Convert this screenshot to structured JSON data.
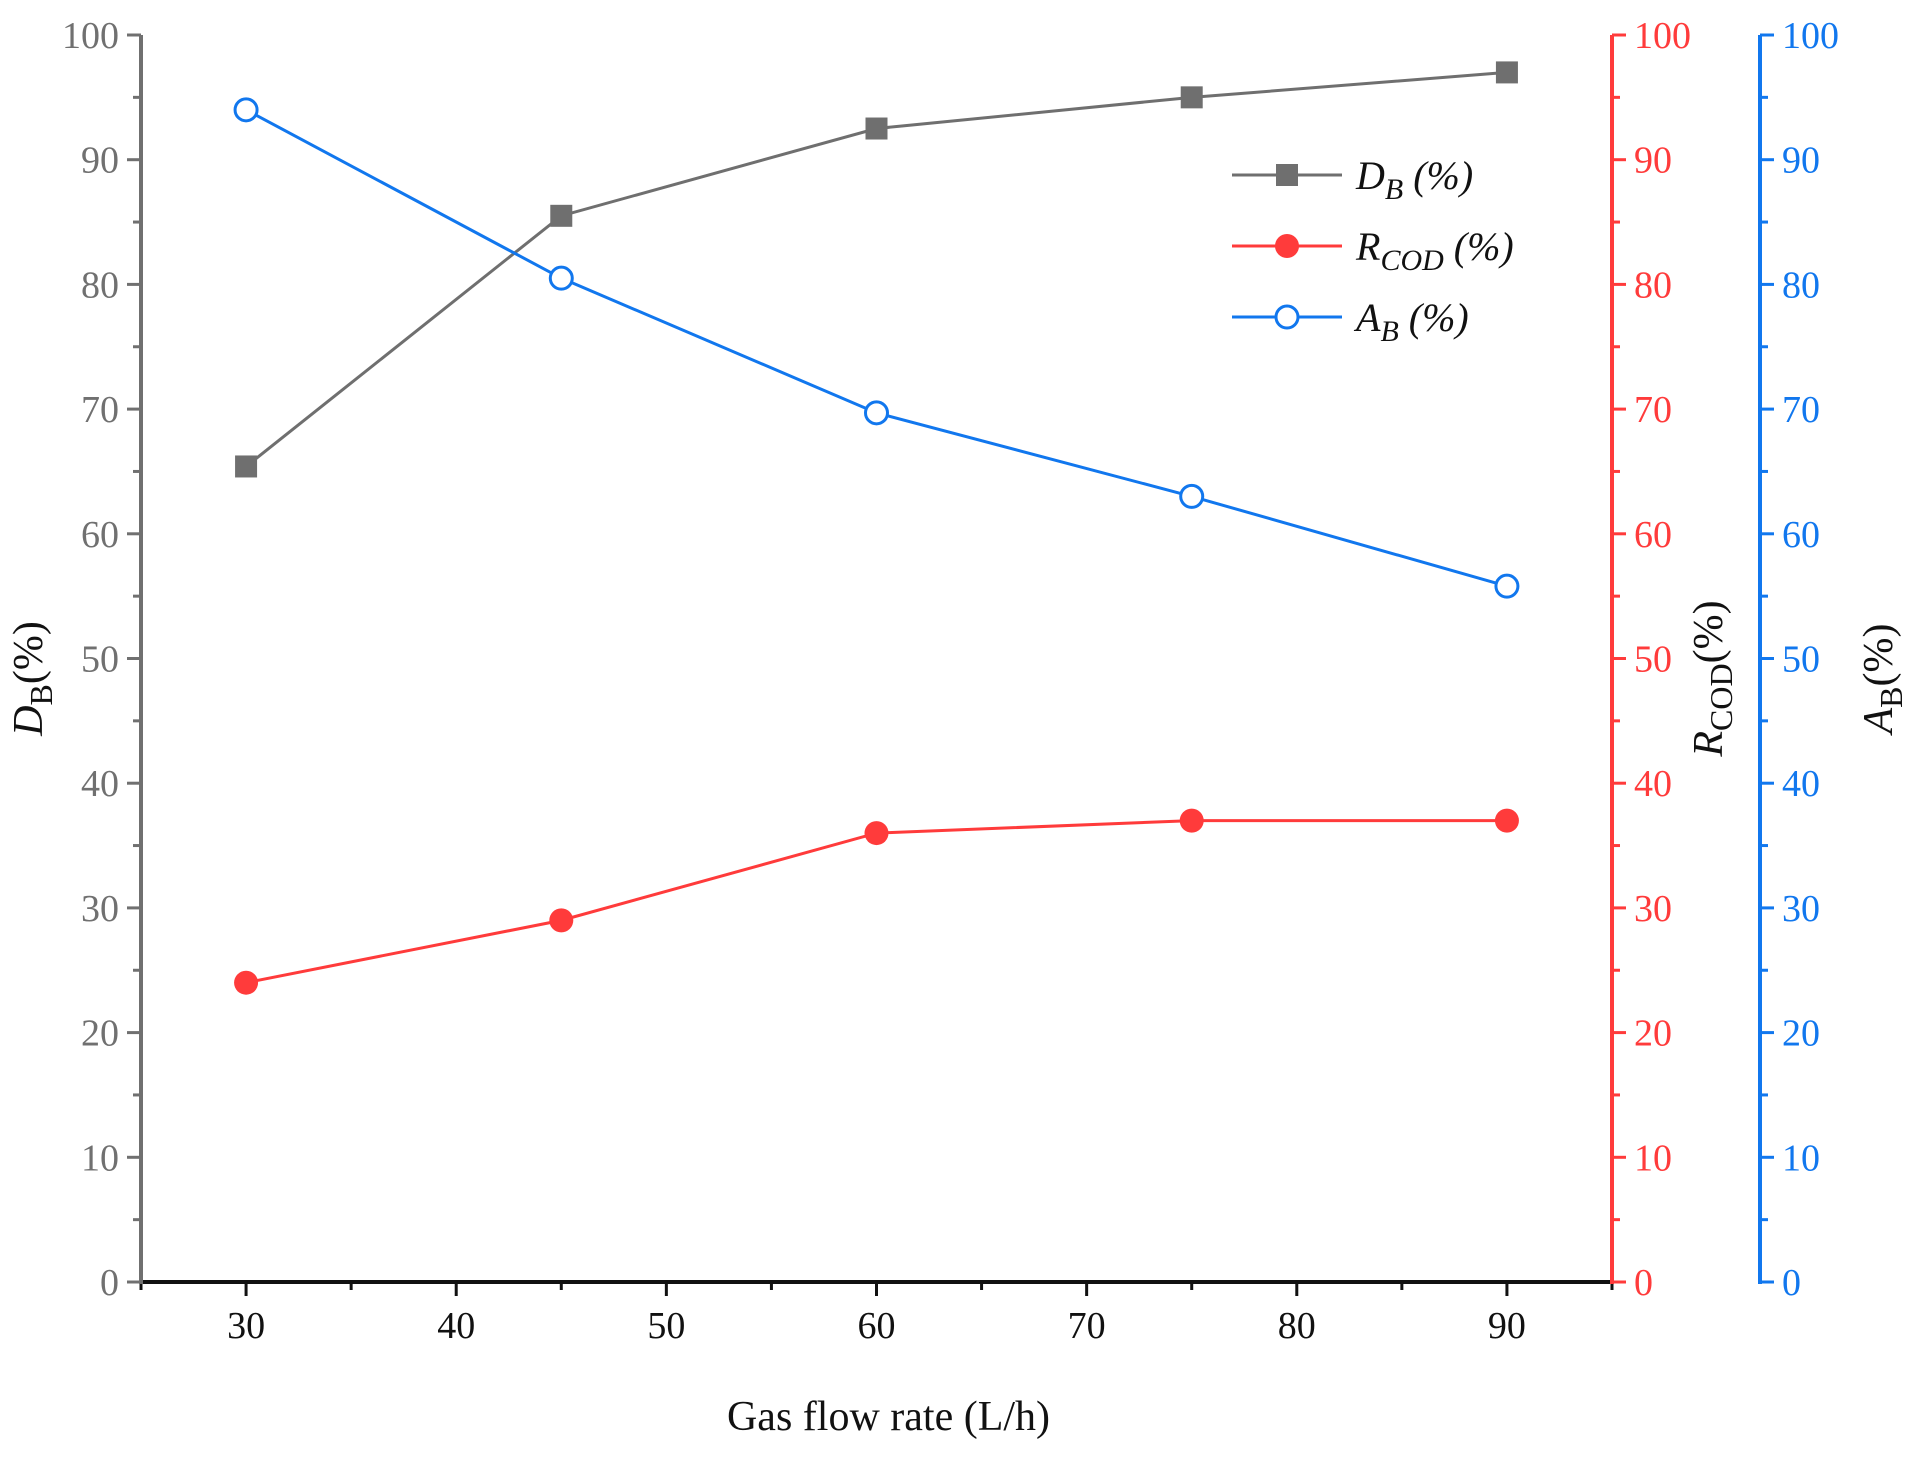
{
  "chart_data": {
    "type": "line",
    "title": "",
    "xlabel": "Gas flow rate (L/h)",
    "xlim": [
      25,
      95
    ],
    "xticks": [
      30,
      40,
      50,
      60,
      70,
      80,
      90
    ],
    "x": [
      30,
      45,
      60,
      75,
      90
    ],
    "y_axes": [
      {
        "id": "DB",
        "position": "left",
        "label_main": "D",
        "label_sub": "B",
        "label_tail": "(%)",
        "color": "#707070",
        "ylim": [
          0,
          100
        ],
        "yticks": [
          0,
          10,
          20,
          30,
          40,
          50,
          60,
          70,
          80,
          90,
          100
        ]
      },
      {
        "id": "RCOD",
        "position": "right",
        "label_main": "R",
        "label_sub": "COD",
        "label_tail": "(%)",
        "color": "#ff3b3b",
        "ylim": [
          0,
          100
        ],
        "yticks": [
          0,
          10,
          20,
          30,
          40,
          50,
          60,
          70,
          80,
          90,
          100
        ]
      },
      {
        "id": "AB",
        "position": "right-offset",
        "label_main": "A",
        "label_sub": "B",
        "label_tail": "(%)",
        "color": "#1177ee",
        "ylim": [
          0,
          100
        ],
        "yticks": [
          0,
          10,
          20,
          30,
          40,
          50,
          60,
          70,
          80,
          90,
          100
        ]
      }
    ],
    "series": [
      {
        "name": "D_B (%)",
        "legend_main": "D",
        "legend_sub": "B",
        "legend_tail": " (%)",
        "axis": "DB",
        "marker": "square",
        "color": "#6f6f6f",
        "values": [
          65.4,
          85.5,
          92.5,
          95.0,
          97.0
        ]
      },
      {
        "name": "R_COD (%)",
        "legend_main": "R",
        "legend_sub": "COD",
        "legend_tail": " (%)",
        "axis": "RCOD",
        "marker": "filled-circle",
        "color": "#ff3b3b",
        "values": [
          24.0,
          29.0,
          36.0,
          37.0,
          37.0
        ]
      },
      {
        "name": "A_B (%)",
        "legend_main": "A",
        "legend_sub": "B",
        "legend_tail": " (%)",
        "axis": "AB",
        "marker": "open-circle",
        "color": "#1177ee",
        "values": [
          94.0,
          80.5,
          69.7,
          63.0,
          55.8
        ]
      }
    ],
    "legend_position": "top-right",
    "grid": false
  }
}
